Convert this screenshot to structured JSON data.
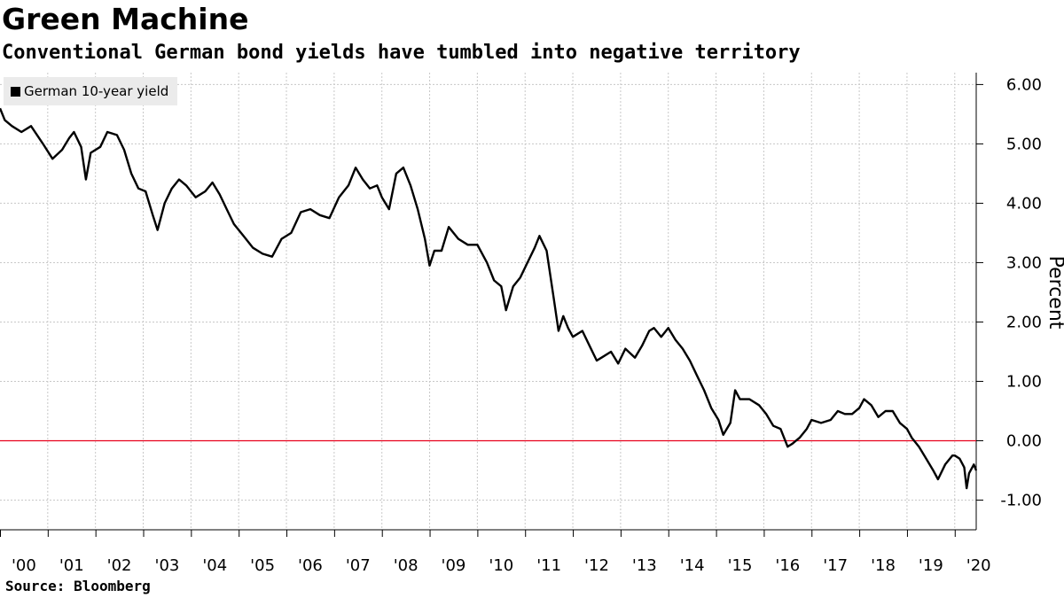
{
  "title": "Green Machine",
  "subtitle": "Conventional German bond yields have tumbled into negative territory",
  "source": "Source: Bloomberg",
  "colors": {
    "series": "#000000",
    "zero_line": "#e8001c",
    "grid": "#c8c8c8",
    "legend_bg": "#ebebeb"
  },
  "chart_data": {
    "type": "line",
    "title": "Green Machine",
    "subtitle": "Conventional German bond yields have tumbled into negative territory",
    "xlabel": "",
    "ylabel": "Percent",
    "ylim": [
      -1.5,
      6.2
    ],
    "xlim": [
      2000.0,
      2020.45
    ],
    "yticks": [
      6,
      5,
      4,
      3,
      2,
      1,
      0,
      -1
    ],
    "ytick_labels": [
      "6.00",
      "5.00",
      "4.00",
      "3.00",
      "2.00",
      "1.00",
      "0.00",
      "-1.00"
    ],
    "xtick_labels": [
      "'00",
      "'01",
      "'02",
      "'03",
      "'04",
      "'05",
      "'06",
      "'07",
      "'08",
      "'09",
      "'10",
      "'11",
      "'12",
      "'13",
      "'14",
      "'15",
      "'16",
      "'17",
      "'18",
      "'19",
      "'20"
    ],
    "grid": true,
    "reference_line": {
      "y": 0.0,
      "color": "#e8001c"
    },
    "legend": {
      "position": "top-left",
      "entries": [
        "German 10-year yield"
      ]
    },
    "series": [
      {
        "name": "German 10-year yield",
        "x": [
          2000.0,
          2000.1,
          2000.25,
          2000.45,
          2000.65,
          2000.9,
          2001.1,
          2001.3,
          2001.45,
          2001.55,
          2001.7,
          2001.8,
          2001.9,
          2002.1,
          2002.25,
          2002.45,
          2002.6,
          2002.75,
          2002.9,
          2003.05,
          2003.2,
          2003.3,
          2003.45,
          2003.6,
          2003.75,
          2003.9,
          2004.1,
          2004.3,
          2004.45,
          2004.6,
          2004.75,
          2004.9,
          2005.1,
          2005.3,
          2005.5,
          2005.7,
          2005.9,
          2006.1,
          2006.3,
          2006.5,
          2006.7,
          2006.9,
          2007.1,
          2007.3,
          2007.45,
          2007.6,
          2007.75,
          2007.9,
          2008.0,
          2008.15,
          2008.3,
          2008.45,
          2008.6,
          2008.75,
          2008.9,
          2009.0,
          2009.1,
          2009.25,
          2009.4,
          2009.6,
          2009.8,
          2010.0,
          2010.2,
          2010.35,
          2010.5,
          2010.6,
          2010.75,
          2010.9,
          2011.05,
          2011.2,
          2011.3,
          2011.45,
          2011.6,
          2011.7,
          2011.8,
          2011.9,
          2012.0,
          2012.2,
          2012.35,
          2012.5,
          2012.6,
          2012.8,
          2012.95,
          2013.1,
          2013.3,
          2013.45,
          2013.6,
          2013.7,
          2013.85,
          2014.0,
          2014.15,
          2014.3,
          2014.45,
          2014.6,
          2014.75,
          2014.9,
          2015.05,
          2015.15,
          2015.3,
          2015.4,
          2015.5,
          2015.7,
          2015.9,
          2016.05,
          2016.2,
          2016.35,
          2016.5,
          2016.6,
          2016.75,
          2016.9,
          2017.0,
          2017.2,
          2017.4,
          2017.55,
          2017.7,
          2017.85,
          2018.0,
          2018.1,
          2018.25,
          2018.4,
          2018.55,
          2018.7,
          2018.85,
          2019.0,
          2019.1,
          2019.25,
          2019.4,
          2019.55,
          2019.65,
          2019.8,
          2019.95,
          2020.0,
          2020.1,
          2020.2,
          2020.25,
          2020.3,
          2020.4,
          2020.45
        ],
        "y": [
          5.6,
          5.4,
          5.3,
          5.2,
          5.3,
          5.0,
          4.75,
          4.9,
          5.1,
          5.2,
          4.95,
          4.4,
          4.85,
          4.95,
          5.2,
          5.15,
          4.9,
          4.5,
          4.25,
          4.2,
          3.8,
          3.55,
          4.0,
          4.25,
          4.4,
          4.3,
          4.1,
          4.2,
          4.35,
          4.15,
          3.9,
          3.65,
          3.45,
          3.25,
          3.15,
          3.1,
          3.4,
          3.5,
          3.85,
          3.9,
          3.8,
          3.75,
          4.1,
          4.3,
          4.6,
          4.4,
          4.25,
          4.3,
          4.1,
          3.9,
          4.5,
          4.6,
          4.3,
          3.9,
          3.4,
          2.95,
          3.2,
          3.2,
          3.6,
          3.4,
          3.3,
          3.3,
          3.0,
          2.7,
          2.6,
          2.2,
          2.6,
          2.75,
          3.0,
          3.25,
          3.45,
          3.2,
          2.4,
          1.85,
          2.1,
          1.9,
          1.75,
          1.85,
          1.6,
          1.35,
          1.4,
          1.5,
          1.3,
          1.55,
          1.4,
          1.6,
          1.85,
          1.9,
          1.75,
          1.9,
          1.7,
          1.55,
          1.35,
          1.1,
          0.85,
          0.55,
          0.35,
          0.1,
          0.3,
          0.85,
          0.7,
          0.7,
          0.6,
          0.45,
          0.25,
          0.2,
          -0.1,
          -0.05,
          0.05,
          0.2,
          0.35,
          0.3,
          0.35,
          0.5,
          0.45,
          0.45,
          0.55,
          0.7,
          0.6,
          0.4,
          0.5,
          0.5,
          0.3,
          0.2,
          0.05,
          -0.1,
          -0.3,
          -0.5,
          -0.65,
          -0.4,
          -0.25,
          -0.25,
          -0.3,
          -0.45,
          -0.8,
          -0.55,
          -0.4,
          -0.5
        ]
      }
    ]
  }
}
